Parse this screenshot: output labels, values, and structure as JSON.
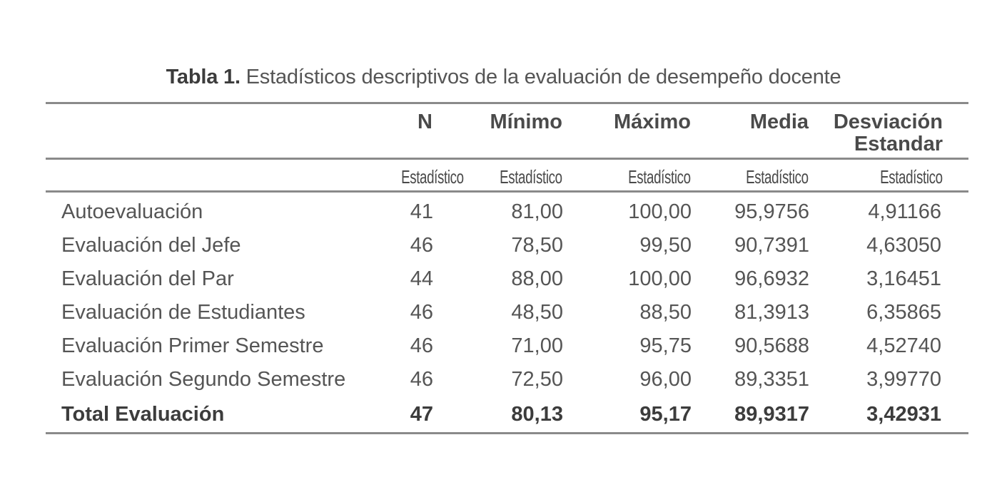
{
  "caption": {
    "label": "Tabla 1.",
    "text": " Estadísticos descriptivos de la evaluación de desempeño docente"
  },
  "table": {
    "headers": [
      "",
      "N",
      "Mínimo",
      "Máximo",
      "Media",
      "Desviación Estandar"
    ],
    "header_desviacion_line1": "Desviación",
    "header_desviacion_line2": "Estandar",
    "subheaders": [
      "",
      "Estadístico",
      "Estadístico",
      "Estadístico",
      "Estadístico",
      "Estadístico"
    ],
    "rows": [
      {
        "label": "Autoevaluación",
        "n": "41",
        "min": "81,00",
        "max": "100,00",
        "media": "95,9756",
        "desv": "4,91166"
      },
      {
        "label": "Evaluación del Jefe",
        "n": "46",
        "min": "78,50",
        "max": "99,50",
        "media": "90,7391",
        "desv": "4,63050"
      },
      {
        "label": "Evaluación del Par",
        "n": "44",
        "min": "88,00",
        "max": "100,00",
        "media": "96,6932",
        "desv": "3,16451"
      },
      {
        "label": "Evaluación de Estudiantes",
        "n": "46",
        "min": "48,50",
        "max": "88,50",
        "media": "81,3913",
        "desv": "6,35865"
      },
      {
        "label": "Evaluación Primer Semestre",
        "n": "46",
        "min": "71,00",
        "max": "95,75",
        "media": "90,5688",
        "desv": "4,52740"
      },
      {
        "label": "Evaluación Segundo Semestre",
        "n": "46",
        "min": "72,50",
        "max": "96,00",
        "media": "89,3351",
        "desv": "3,99770"
      }
    ],
    "total": {
      "label": "Total Evaluación",
      "n": "47",
      "min": "80,13",
      "max": "95,17",
      "media": "89,9317",
      "desv": "3,42931"
    }
  }
}
